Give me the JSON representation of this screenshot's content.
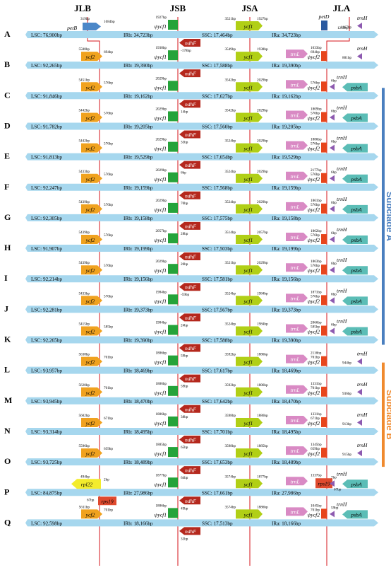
{
  "headers": [
    "JLB",
    "JSB",
    "JSA",
    "JLA"
  ],
  "colors": {
    "bar": "#a6d7ee",
    "ycf2": "#f0a21f",
    "ycf1": "#26a33a",
    "ycf1_jsa": "#b1cf16",
    "ndhF": "#b5281d",
    "trnL": "#d98ac4",
    "trnH": "#8d5ab0",
    "psbA": "#5bbdb6",
    "petB": "#4b87c8",
    "petD": "#2b5aa0",
    "rps19": "#e04a2e",
    "rpl22": "#f3ec2c",
    "jct": "#e7451c",
    "boundary": "#d4161b",
    "subA": "#4a7fbf",
    "subB": "#f08a2e"
  },
  "subclades": [
    {
      "label": "Subclade A",
      "rows": [
        "C",
        "K"
      ],
      "color": "subA"
    },
    {
      "label": "Subclade B",
      "rows": [
        "L",
        "O"
      ],
      "color": "subB"
    }
  ],
  "rows": [
    {
      "id": "A",
      "lsc": "LSC: 76,900bp",
      "irb": "IRb: 34,723bp",
      "ssc": "SSC: 17,464bp",
      "ira": "IRa: 34,723bp",
      "left_gene": "petB",
      "left_gene_color": "petB",
      "jlb_l": "319bp",
      "jlb_r": "1084bp",
      "jsb_top": "1927bp",
      "jsb_gene": "ψycf1",
      "ndh": "ndhF",
      "ndh_dist": "-178bp",
      "jsa_l": "3521bp",
      "jsa_r": "1927bp",
      "ycf1": "ycf1",
      "right_gene": "petD",
      "ra_dist": "1263bp",
      "trnH": "trnH",
      "trnH_dist": "1167bp",
      "has_psbA": false
    },
    {
      "id": "B",
      "lsc": "LSC: 92,265bp",
      "irb": "IRb: 19,390bp",
      "ssc": "SSC: 17,588bp",
      "ira": "IRa: 19,390bp",
      "left_gene": "ycf2",
      "jlb_l": "5588bp",
      "jlb_r": "694bp",
      "jsb_top": "1938bp",
      "jsb_gene": "ψycf1",
      "ndh": "ndhF",
      "ndh_dist": "",
      "jsa_l": "3549bp",
      "jsa_r": "1938bp",
      "ycf1": "ycf1",
      "trnL": "trnL",
      "trnL_dist": "1033bp",
      "ja_l": "694bp",
      "ja_gene": "ψycf2",
      "trnH": "trnH",
      "trnH_dist": "881bp",
      "has_psbA": false
    },
    {
      "id": "C",
      "lsc": "LSC: 91,846bp",
      "irb": "IRb: 19,162bp",
      "ssc": "SSC: 17,627bp",
      "ira": "IRa: 19,162bp",
      "left_gene": "ycf2",
      "jlb_l": "5451bp",
      "jlb_r": "576bp",
      "jsb_top": "2029bp",
      "jsb_gene": "ψycf1",
      "ndh": "ndhF",
      "ndh_dist": "14bp",
      "jsa_l": "3542bp",
      "jsa_r": "2029bp",
      "ycf1": "ycf1",
      "trnL": "trnL",
      "trnL_dist": "",
      "ja_l": "576bp",
      "ja_gene": "ψycf2",
      "trnH": "trnH",
      "trnH_dist": "6bp",
      "has_psbA": true
    },
    {
      "id": "D",
      "lsc": "LSC: 91,782bp",
      "irb": "IRb: 19,205bp",
      "ssc": "SSC: 17,560bp",
      "ira": "IRa: 19,205bp",
      "left_gene": "ycf2",
      "jlb_l": "5442bp",
      "jlb_r": "576bp",
      "jsb_top": "2029bp",
      "jsb_gene": "ψycf1",
      "ndh": "ndhF",
      "ndh_dist": "35bp",
      "jsa_l": "3542bp",
      "jsa_r": "2029bp",
      "ycf1": "ycf1",
      "trnL": "trnL",
      "trnL_dist": "1809bp",
      "ja_l": "576bp",
      "ja_gene": "ψycf2",
      "trnH": "trnH",
      "trnH_dist": "6bp",
      "has_psbA": true
    },
    {
      "id": "E",
      "lsc": "LSC: 91,813bp",
      "irb": "IRb: 19,529bp",
      "ssc": "SSC: 17,654bp",
      "ira": "IRa: 19,529bp",
      "left_gene": "ycf2",
      "jlb_l": "5442bp",
      "jlb_r": "576bp",
      "jsb_top": "2029bp",
      "jsb_gene": "ψycf1",
      "ndh": "ndhF",
      "ndh_dist": "6bp",
      "jsa_l": "3524bp",
      "jsa_r": "2029bp",
      "ycf1": "ycf1",
      "trnL": "trnL",
      "trnL_dist": "1886bp",
      "ja_l": "576bp",
      "ja_gene": "ψycf2",
      "trnH": "trnH",
      "trnH_dist": "6bp",
      "has_psbA": true
    },
    {
      "id": "F",
      "lsc": "LSC: 92,247bp",
      "irb": "IRb: 19,159bp",
      "ssc": "SSC: 17,568bp",
      "ira": "IRa: 19,159bp",
      "left_gene": "ycf2",
      "jlb_l": "5433bp",
      "jlb_r": "576bp",
      "jsb_top": "2029bp",
      "jsb_gene": "ψycf1",
      "ndh": "ndhF",
      "ndh_dist": "70bp",
      "jsa_l": "3524bp",
      "jsa_r": "2029bp",
      "ycf1": "ycf1",
      "trnL": "trnL",
      "trnL_dist": "2177bp",
      "ja_l": "576bp",
      "ja_gene": "ψycf2",
      "trnH": "trnH",
      "trnH_dist": "6bp",
      "has_psbA": true
    },
    {
      "id": "G",
      "lsc": "LSC: 92,305bp",
      "irb": "IRb: 19,158bp",
      "ssc": "SSC: 17,575bp",
      "ira": "IRa: 19,158bp",
      "left_gene": "ycf2",
      "jlb_l": "5439bp",
      "jlb_r": "576bp",
      "jsb_top": "2029bp",
      "jsb_gene": "ψycf1",
      "ndh": "ndhF",
      "ndh_dist": "28bp",
      "jsa_l": "3524bp",
      "jsa_r": "2029bp",
      "ycf1": "ycf1",
      "trnL": "trnL",
      "trnL_dist": "1861bp",
      "ja_l": "576bp",
      "ja_gene": "ψycf2",
      "trnH": "trnH",
      "trnH_dist": "6bp",
      "has_psbA": true
    },
    {
      "id": "H",
      "lsc": "LSC: 91,907bp",
      "irb": "IRb: 19,199bp",
      "ssc": "SSC: 17,503bp",
      "ira": "IRa: 19,199bp",
      "left_gene": "ycf2",
      "jlb_l": "5439bp",
      "jlb_r": "576bp",
      "jsb_top": "2057bp",
      "jsb_gene": "ψycf1",
      "ndh": "ndhF",
      "ndh_dist": "20bp",
      "jsa_l": "3514bp",
      "jsa_r": "2057bp",
      "ycf1": "ycf1",
      "trnL": "trnL",
      "trnL_dist": "1862bp",
      "ja_l": "576bp",
      "ja_gene": "ψycf2",
      "trnH": "trnH",
      "trnH_dist": "6bp",
      "has_psbA": true
    },
    {
      "id": "I",
      "lsc": "LSC: 92,214bp",
      "irb": "IRb: 19,156bp",
      "ssc": "SSC: 17,581bp",
      "ira": "IRa: 19,156bp",
      "left_gene": "ycf2",
      "jlb_l": "5439bp",
      "jlb_r": "576bp",
      "jsb_top": "2029bp",
      "jsb_gene": "ψycf1",
      "ndh": "ndhF",
      "ndh_dist": "-59bp",
      "jsa_l": "3521bp",
      "jsa_r": "2029bp",
      "ycf1": "ycf1",
      "trnL": "trnL",
      "trnL_dist": "1863bp",
      "ja_l": "576bp",
      "ja_gene": "ψycf2",
      "trnH": "trnH",
      "trnH_dist": "6bp",
      "has_psbA": true
    },
    {
      "id": "J",
      "lsc": "LSC: 92,281bp",
      "irb": "IRb: 19,373bp",
      "ssc": "SSC: 17,567bp",
      "ira": "IRa: 19,373bp",
      "left_gene": "ycf2",
      "jlb_l": "5433bp",
      "jlb_r": "576bp",
      "jsb_top": "1984bp",
      "jsb_gene": "ψycf1",
      "ndh": "ndhF",
      "ndh_dist": "24bp",
      "jsa_l": "3524bp",
      "jsa_r": "1984bp",
      "ycf1": "ycf1",
      "trnL": "trnL",
      "trnL_dist": "1871bp",
      "ja_l": "576bp",
      "ja_gene": "ψycf2",
      "trnH": "trnH",
      "trnH_dist": "6bp",
      "has_psbA": true
    },
    {
      "id": "K",
      "lsc": "LSC: 92,265bp",
      "irb": "IRb: 19,390bp",
      "ssc": "SSC: 17,588bp",
      "ira": "IRa: 19,390bp",
      "left_gene": "ycf2",
      "jlb_l": "5415bp",
      "jlb_r": "585bp",
      "jsb_top": "1984bp",
      "jsb_gene": "ψycf1",
      "ndh": "ndhF",
      "ndh_dist": "59bp",
      "jsa_l": "3524bp",
      "jsa_r": "1984bp",
      "ycf1": "ycf1",
      "trnL": "trnL",
      "trnL_dist": "2066bp",
      "ja_l": "585bp",
      "ja_gene": "ψycf2",
      "trnH": "trnH",
      "trnH_dist": "6bp",
      "has_psbA": true
    },
    {
      "id": "L",
      "lsc": "LSC: 93,957bp",
      "irb": "IRb: 18,469bp",
      "ssc": "SSC: 17,617bp",
      "ira": "IRa: 18,469bp",
      "left_gene": "ycf2",
      "jlb_l": "5638bp",
      "jlb_r": "701bp",
      "jsb_top": "1886bp",
      "jsb_gene": "ψycf1",
      "ndh": "ndhF",
      "ndh_dist": "59bp",
      "jsa_l": "3592bp",
      "jsa_r": "1886bp",
      "ycf1": "ycf1",
      "trnL": "trnL",
      "trnL_dist": "2116bp",
      "ja_l": "701bp",
      "ja_gene": "ψycf2",
      "trnH": "trnH",
      "trnH_dist": "944bp",
      "has_psbA": false
    },
    {
      "id": "M",
      "lsc": "LSC: 93,945bp",
      "irb": "IRb: 18,470bp",
      "ssc": "SSC: 17,642bp",
      "ira": "IRa: 18,470bp",
      "left_gene": "ycf2",
      "jlb_l": "5620bp",
      "jlb_r": "701bp",
      "jsb_top": "1886bp",
      "jsb_gene": "ψycf1",
      "ndh": "ndhF",
      "ndh_dist": "38bp",
      "jsa_l": "3592bp",
      "jsa_r": "1886bp",
      "ycf1": "ycf1",
      "trnL": "trnL",
      "trnL_dist": "1331bp",
      "ja_l": "701bp",
      "ja_gene": "ψycf2",
      "trnH": "trnH",
      "trnH_dist": "936bp",
      "has_psbA": false
    },
    {
      "id": "N",
      "lsc": "LSC: 93,314bp",
      "irb": "IRb: 18,495bp",
      "ssc": "SSC: 17,701bp",
      "ira": "IRa: 18,495bp",
      "left_gene": "ycf2",
      "jlb_l": "5602bp",
      "jlb_r": "671bp",
      "jsb_top": "1886bp",
      "jsb_gene": "ψycf1",
      "ndh": "ndhF",
      "ndh_dist": "65bp",
      "jsa_l": "3598bp",
      "jsa_r": "1886bp",
      "ycf1": "ycf1",
      "trnL": "trnL",
      "trnL_dist": "1331bp",
      "ja_l": "671bp",
      "ja_gene": "ψycf2",
      "trnH": "trnH",
      "trnH_dist": "913bp",
      "has_psbA": false
    },
    {
      "id": "O",
      "lsc": "LSC: 93,725bp",
      "irb": "IRb: 18,489bp",
      "ssc": "SSC: 17,653bp",
      "ira": "IRa: 18,489bp",
      "left_gene": "ycf2",
      "jlb_l": "5596bp",
      "jlb_r": "659bp",
      "jsb_top": "1885bp",
      "jsb_gene": "ψycf1",
      "ndh": "ndhF",
      "ndh_dist": "64bp",
      "jsa_l": "3598bp",
      "jsa_r": "1885bp",
      "ycf1": "ycf1",
      "trnL": "trnL",
      "trnL_dist": "1345bp",
      "ja_l": "659bp",
      "ja_gene": "ψycf2",
      "trnH": "trnH",
      "trnH_dist": "915bp",
      "has_psbA": false
    },
    {
      "id": "P",
      "lsc": "LSC: 84,875bp",
      "irb": "IRb: 27,986bp",
      "ssc": "SSC: 17,661bp",
      "ira": "IRa: 27,986bp",
      "left_gene": "rpl22",
      "jlb_l": "494bp",
      "jlb_r": "2bp",
      "jsb_top": "1877bp",
      "jsb_gene": "ψycf1",
      "ndh": "ndhF",
      "ndh_dist": "49bp",
      "jsa_l": "3574bp",
      "jsa_r": "1877bp",
      "ycf1": "ycf1",
      "trnL": "trnL",
      "trnL_dist": "1337bp",
      "ja_gene": "rps19",
      "trnH": "trnH",
      "trnH_dist": "7bp",
      "has_psbA": true,
      "rps19_l": "rps19",
      "rps19_l_dist": "67bp",
      "rps19_r_dist": "67bp",
      "ndh2_dist": "33bp"
    },
    {
      "id": "Q",
      "lsc": "LSC: 92,598bp",
      "irb": "IRb: 18,166bp",
      "ssc": "SSC: 17,513bp",
      "ira": "IRa: 18,166bp",
      "left_gene": "ycf2",
      "jlb_l": "5611bp",
      "jlb_r": "701bp",
      "jsb_top": "1886bp",
      "jsb_gene": "ψycf1",
      "ndh": "ndhF",
      "ndh_dist": "33bp",
      "jsa_l": "3574bp",
      "jsa_r": "1886bp",
      "ycf1": "ycf1",
      "trnL": "trnL",
      "trnL_dist": "1045bp",
      "ja_l": "701bp",
      "ja_gene": "ψycf2",
      "trnH": "trnH",
      "trnH_dist": "59bp",
      "has_psbA": true
    }
  ]
}
